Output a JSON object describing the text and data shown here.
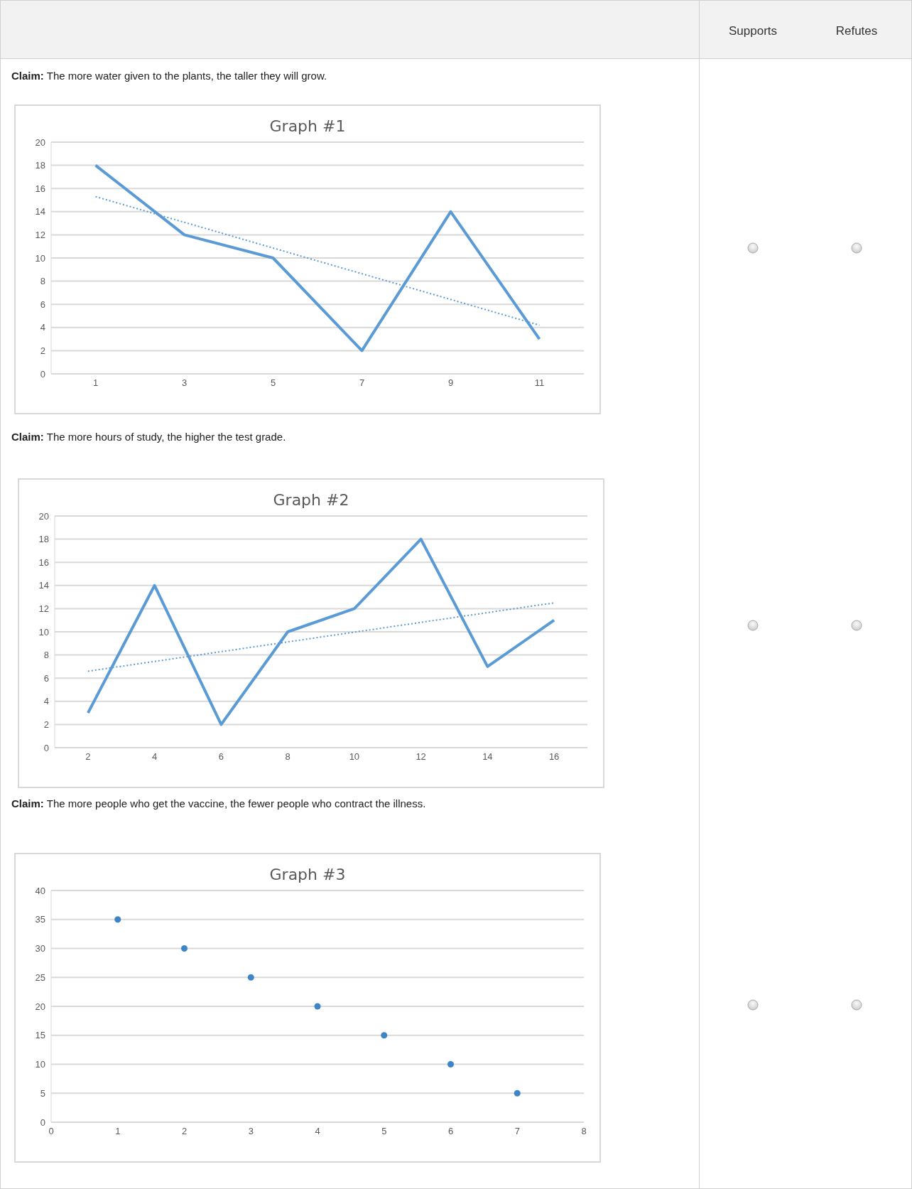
{
  "chart_data": [
    {
      "type": "line",
      "title": "Graph #1",
      "subtitle": "Claim: The more water given to the plants, the taller they will grow.",
      "annotations": [
        "Supports",
        "Refutes"
      ],
      "x": [
        1,
        3,
        5,
        7,
        9,
        11
      ],
      "xlim": [
        0,
        12
      ],
      "xticks": [
        1,
        3,
        5,
        7,
        9,
        11
      ],
      "ylim": [
        0,
        20
      ],
      "yticks": [
        0,
        2,
        4,
        6,
        8,
        10,
        12,
        14,
        16,
        18,
        20
      ],
      "grid": "y",
      "marker": "none",
      "series": [
        {
          "color": "#5b9bd5",
          "values": [
            18,
            12,
            10,
            2,
            14,
            3
          ]
        },
        {
          "color": "#5b9bd5",
          "x": [
            1,
            11
          ],
          "values": [
            15.3,
            4.2
          ],
          "line_style": "dotted"
        }
      ]
    },
    {
      "type": "line",
      "title": "Graph #2",
      "subtitle": "Claim: The more hours of study, the higher the test grade.",
      "x": [
        2,
        4,
        6,
        8,
        10,
        12,
        14,
        16
      ],
      "xlim": [
        1,
        17
      ],
      "xticks": [
        2,
        4,
        6,
        8,
        10,
        12,
        14,
        16
      ],
      "ylim": [
        0,
        20
      ],
      "yticks": [
        0,
        2,
        4,
        6,
        8,
        10,
        12,
        14,
        16,
        18,
        20
      ],
      "grid": "y",
      "marker": "none",
      "series": [
        {
          "color": "#5b9bd5",
          "values": [
            3,
            14,
            2,
            10,
            12,
            18,
            7,
            11
          ]
        },
        {
          "color": "#5b9bd5",
          "x": [
            2,
            16
          ],
          "values": [
            6.6,
            12.5
          ],
          "line_style": "dotted"
        }
      ]
    },
    {
      "type": "scatter",
      "title": "Graph #3",
      "subtitle": "Claim: The more people who get the vaccine, the fewer people who contract the illness.",
      "x": [
        1,
        2,
        3,
        4,
        5,
        6,
        7
      ],
      "xlim": [
        0,
        8
      ],
      "xticks": [
        0,
        1,
        2,
        3,
        4,
        5,
        6,
        7,
        8
      ],
      "ylim": [
        0,
        40
      ],
      "yticks": [
        0,
        5,
        10,
        15,
        20,
        25,
        30,
        35,
        40
      ],
      "grid": "y",
      "marker": "circle",
      "series": [
        {
          "color": "#3d85c6",
          "values": [
            35,
            30,
            25,
            20,
            15,
            10,
            5
          ]
        }
      ]
    }
  ]
}
